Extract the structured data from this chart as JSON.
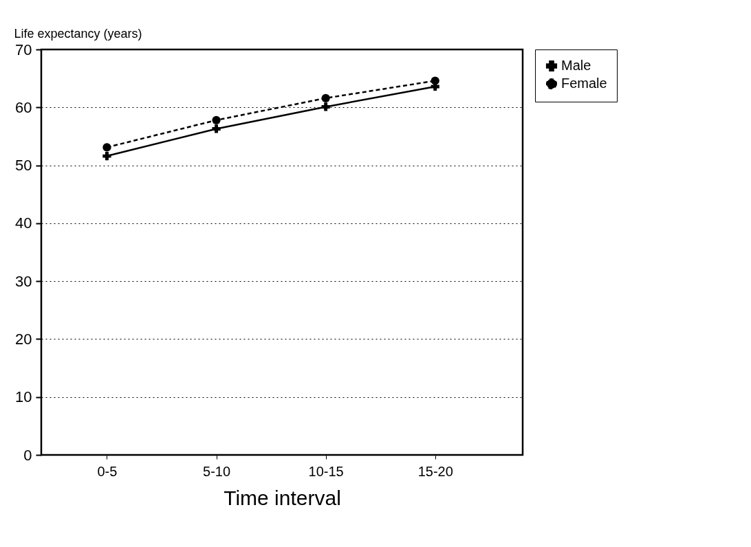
{
  "chart_data": {
    "type": "line",
    "xlabel": "Time interval",
    "ylabel": "Life expectancy (years)",
    "categories": [
      "0-5",
      "5-10",
      "10-15",
      "15-20"
    ],
    "series": [
      {
        "name": "Male",
        "color": "#000000",
        "marker": "cross",
        "line_style": "solid",
        "values": [
          51.6,
          56.3,
          60.1,
          63.6
        ]
      },
      {
        "name": "Female",
        "color": "#000000",
        "marker": "circle",
        "line_style": "dashed",
        "values": [
          53.1,
          57.8,
          61.6,
          64.6
        ]
      }
    ],
    "ylim": [
      0,
      70
    ],
    "yticks": [
      0,
      10,
      20,
      30,
      40,
      50,
      60,
      70
    ],
    "grid": "y",
    "legend": "right"
  }
}
